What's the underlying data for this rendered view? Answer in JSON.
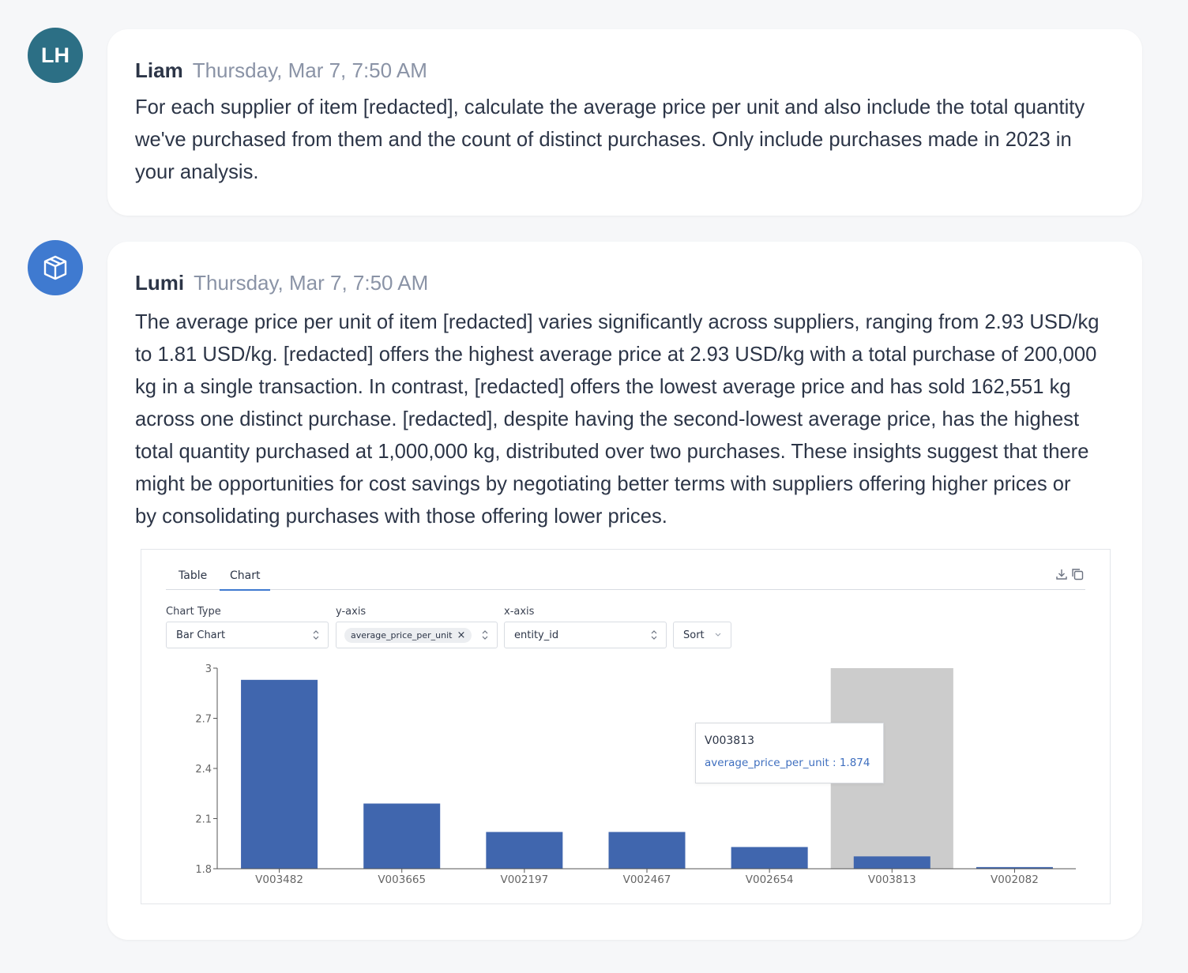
{
  "messages": [
    {
      "avatar": "LH",
      "sender": "Liam",
      "time": "Thursday, Mar 7, 7:50 AM",
      "lines": [
        "For each supplier of item [redacted], calculate the average price per unit and also include the total quantity",
        "we've purchased from them and the count of distinct purchases. Only include purchases made in 2023 in",
        "your analysis."
      ]
    },
    {
      "avatar_icon": "cube-icon",
      "sender": "Lumi",
      "time": "Thursday, Mar 7, 7:50 AM",
      "lines": [
        "The average price per unit of item [redacted] varies significantly across suppliers, ranging from 2.93 USD/kg",
        "to 1.81 USD/kg. [redacted] offers the highest average price at 2.93 USD/kg with a total purchase of 200,000",
        "kg in a single transaction. In contrast, [redacted] offers the lowest average price and has sold 162,551 kg",
        "across one distinct purchase. [redacted], despite having the second-lowest average price, has the highest",
        "total quantity purchased at 1,000,000 kg, distributed over two purchases. These insights suggest that there",
        "might be opportunities for cost savings by negotiating better terms with suppliers offering higher prices or",
        "by consolidating purchases with those offering lower prices."
      ]
    }
  ],
  "panel": {
    "tabs": [
      "Table",
      "Chart"
    ],
    "active_tab": "Chart",
    "icons": [
      "download-icon",
      "copy-icon"
    ],
    "controls": {
      "chart_type_label": "Chart Type",
      "chart_type_value": "Bar Chart",
      "y_axis_label": "y-axis",
      "y_axis_chip": "average_price_per_unit",
      "x_axis_label": "x-axis",
      "x_axis_value": "entity_id",
      "sort_label": "Sort"
    },
    "tooltip": {
      "title": "V003813",
      "value_text": "average_price_per_unit : 1.874"
    }
  },
  "chart_data": {
    "type": "bar",
    "categories": [
      "V003482",
      "V003665",
      "V002197",
      "V002467",
      "V002654",
      "V003813",
      "V002082"
    ],
    "series": [
      {
        "values": [
          2.93,
          2.19,
          2.02,
          2.02,
          1.93,
          1.874,
          1.81
        ]
      }
    ],
    "yticks": [
      "1.8",
      "2.1",
      "2.4",
      "2.7",
      "3"
    ],
    "ylim": [
      1.8,
      3.0
    ],
    "highlighted_category": "V003813",
    "bar_color": "#4066ae",
    "highlight_color": "#cccccc",
    "title": "",
    "xlabel": "",
    "ylabel": "",
    "grid": false
  }
}
